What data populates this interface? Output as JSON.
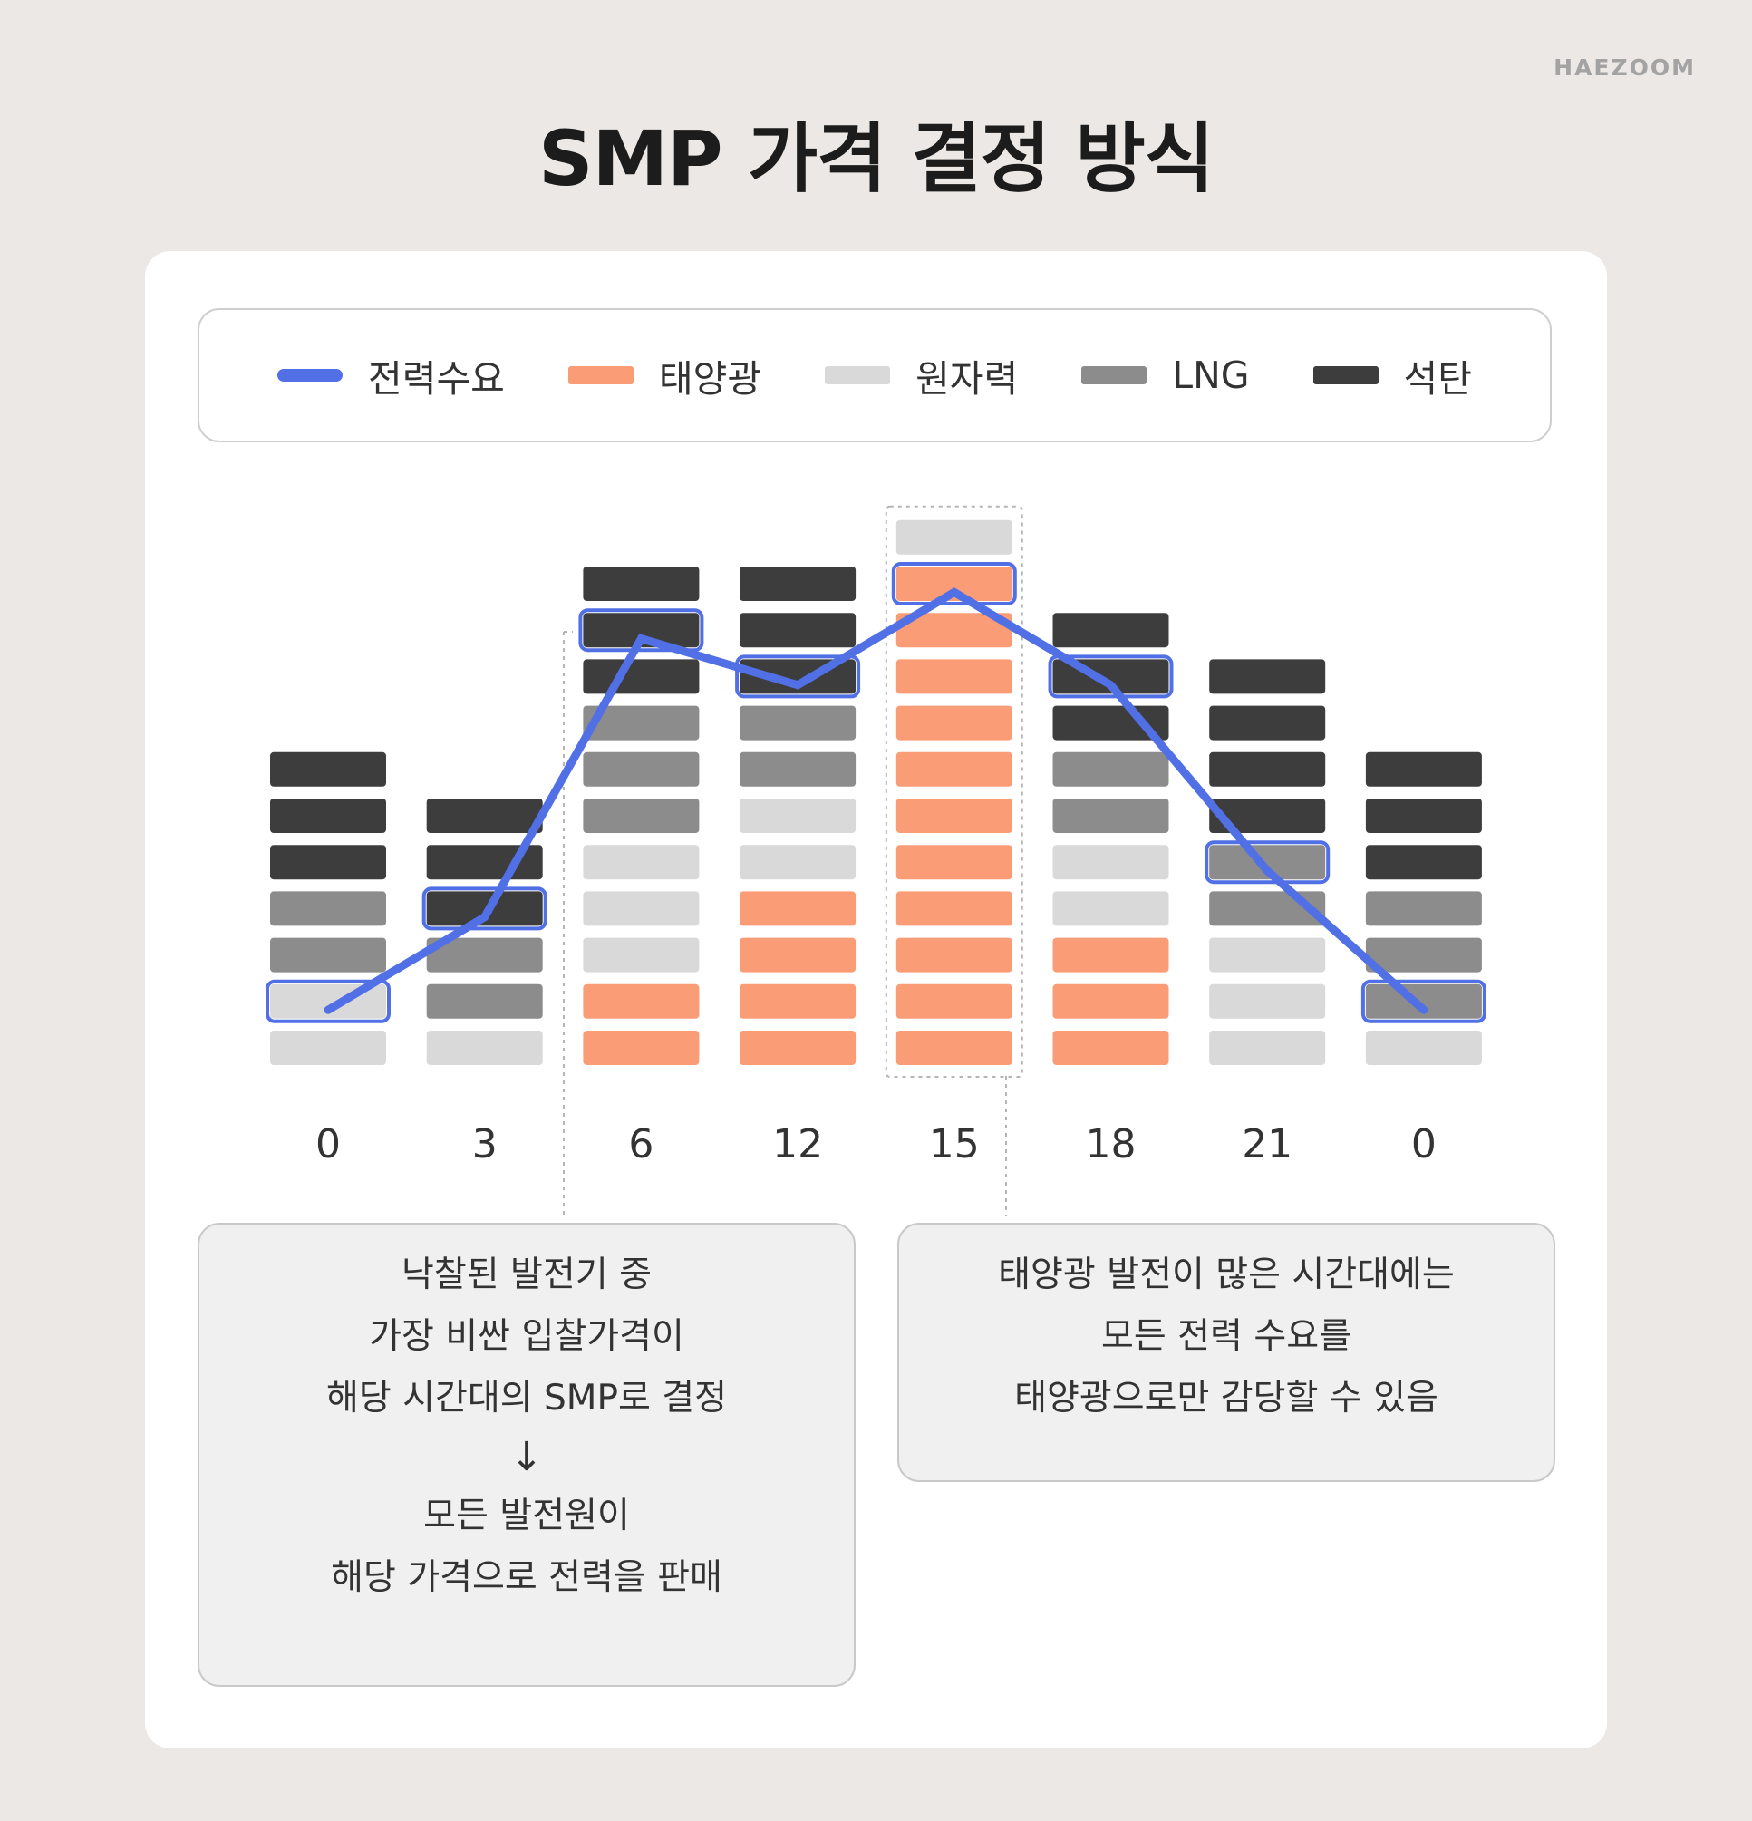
{
  "brand": "HAEZOOM",
  "title": "SMP 가격 결정 방식",
  "legend": [
    {
      "key": "demand",
      "label": "전력수요",
      "color": "#5270e5",
      "kind": "line"
    },
    {
      "key": "solar",
      "label": "태양광",
      "color": "#fa9d76",
      "kind": "bar"
    },
    {
      "key": "nuclear",
      "label": "원자력",
      "color": "#d9d9d9",
      "kind": "bar"
    },
    {
      "key": "lng",
      "label": "LNG",
      "color": "#8c8c8c",
      "kind": "bar"
    },
    {
      "key": "coal",
      "label": "석탄",
      "color": "#3d3d3d",
      "kind": "bar"
    }
  ],
  "chart_data": {
    "type": "bar",
    "stacking": "stacked unit blocks (bottom to top = cheapest to most expensive bid)",
    "categories": [
      "0",
      "3",
      "6",
      "12",
      "15",
      "18",
      "21",
      "0"
    ],
    "stacks": [
      [
        "nuclear",
        "nuclear",
        "lng",
        "lng",
        "coal",
        "coal",
        "coal"
      ],
      [
        "nuclear",
        "lng",
        "lng",
        "coal",
        "coal",
        "coal"
      ],
      [
        "solar",
        "solar",
        "nuclear",
        "nuclear",
        "nuclear",
        "lng",
        "lng",
        "lng",
        "coal",
        "coal",
        "coal"
      ],
      [
        "solar",
        "solar",
        "solar",
        "solar",
        "nuclear",
        "nuclear",
        "lng",
        "lng",
        "coal",
        "coal",
        "coal"
      ],
      [
        "solar",
        "solar",
        "solar",
        "solar",
        "solar",
        "solar",
        "solar",
        "solar",
        "solar",
        "solar",
        "solar",
        "nuclear"
      ],
      [
        "solar",
        "solar",
        "solar",
        "nuclear",
        "nuclear",
        "lng",
        "lng",
        "coal",
        "coal",
        "coal"
      ],
      [
        "nuclear",
        "nuclear",
        "nuclear",
        "lng",
        "lng",
        "coal",
        "coal",
        "coal",
        "coal"
      ],
      [
        "nuclear",
        "lng",
        "lng",
        "lng",
        "coal",
        "coal",
        "coal"
      ]
    ],
    "demand_series": {
      "name": "전력수요",
      "block_level": [
        2,
        4,
        10,
        9,
        11,
        9,
        5,
        2
      ]
    },
    "highlighted_block_index": [
      1,
      3,
      9,
      8,
      10,
      8,
      4,
      1
    ],
    "dashed_box_category_index": 4,
    "dashed_guides": [
      "between 3 and 6 → left note",
      "between 15 and 18 → right note"
    ]
  },
  "notes": {
    "left": {
      "lines_before": [
        "낙찰된 발전기 중",
        "가장 비싼 입찰가격이",
        "해당 시간대의 SMP로 결정"
      ],
      "arrow": "↓",
      "lines_after": [
        "모든 발전원이",
        "해당 가격으로 전력을 판매"
      ]
    },
    "right": {
      "lines": [
        "태양광 발전이 많은 시간대에는",
        "모든 전력 수요를",
        "태양광으로만 감당할 수 있음"
      ]
    }
  }
}
